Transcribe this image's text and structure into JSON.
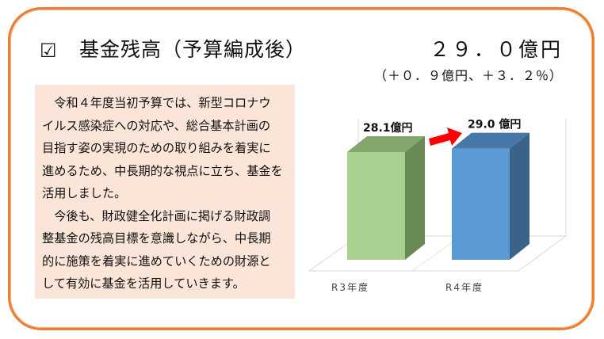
{
  "header": {
    "checkbox_icon": "checked-box-icon",
    "title": "基金残高（予算編成後）",
    "amount": "２９．０億円",
    "change": "（＋０．９億円、＋３．２％）"
  },
  "description": {
    "lines": [
      "　令和４年度当初予算では、新型コロナウ",
      "イルス感染症への対応や、総合基本計画の",
      "目指す姿の実現のための取り組みを着実に",
      "進めるため、中長期的な視点に立ち、基金を",
      "活用しました。",
      "　今後も、財政健全化計画に掲げる財政調",
      "整基金の残高目標を意識しながら、中長期",
      "的に施策を着実に進めていくための財源と",
      "して有効に基金を活用していきます。"
    ]
  },
  "chart_data": {
    "type": "bar",
    "style": "3d-column",
    "categories": [
      "R3年度",
      "R4年度"
    ],
    "values": [
      28.1,
      29.0
    ],
    "data_labels": [
      "28.1億円",
      "29.0 億円"
    ],
    "colors": [
      "#a9d08e",
      "#5b9bd5"
    ],
    "ylim": [
      0,
      30
    ],
    "grid": false,
    "annotation": "red-arrow-increase-icon",
    "arrow_color": "#ff0000"
  },
  "colors": {
    "border": "#ed7d31",
    "textbox_bg": "#fbe5d9"
  }
}
